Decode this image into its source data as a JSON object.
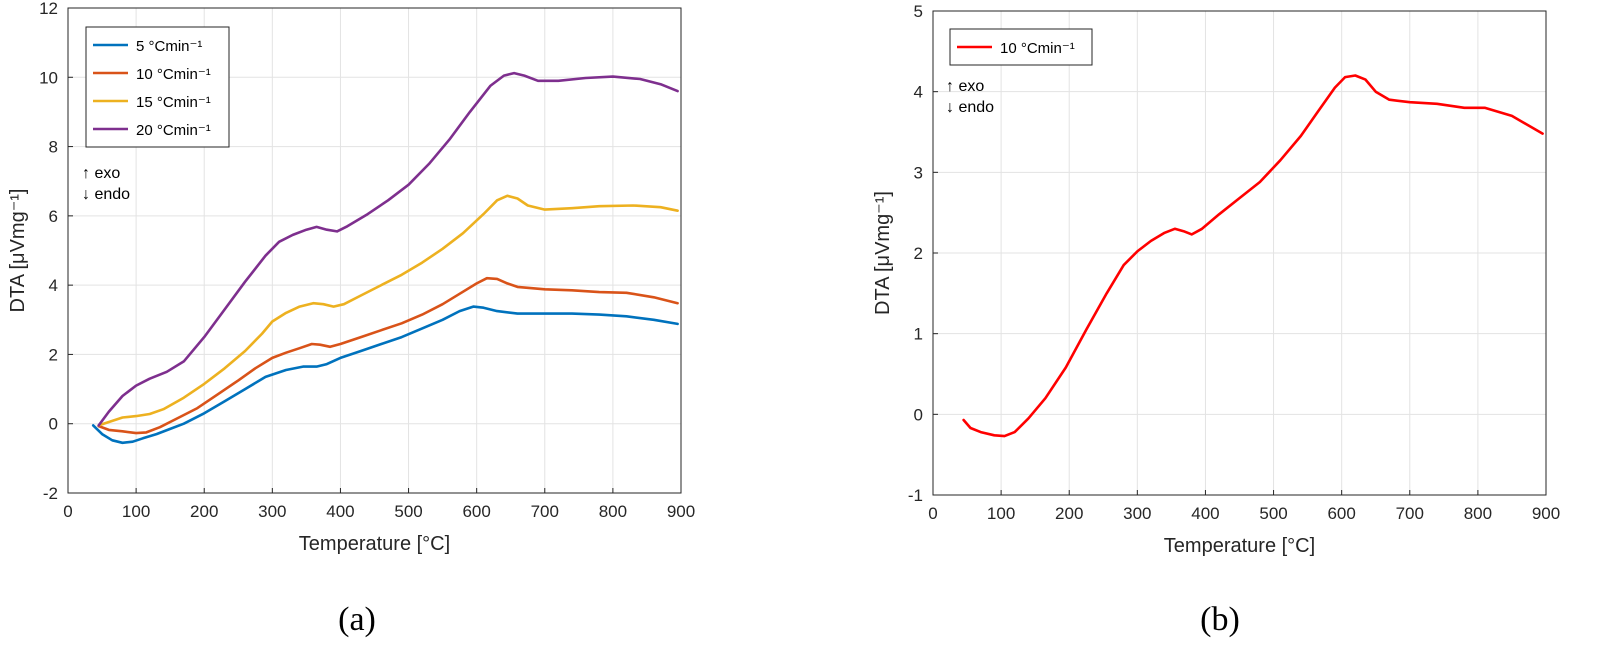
{
  "chart_data": [
    {
      "type": "line",
      "panel_label": "(a)",
      "xlabel": "Temperature [°C]",
      "ylabel": "DTA [μVmg⁻¹]",
      "xlim": [
        0,
        900
      ],
      "ylim": [
        -2,
        12
      ],
      "x_ticks": [
        "0",
        "100",
        "200",
        "300",
        "400",
        "500",
        "600",
        "700",
        "800",
        "900"
      ],
      "y_ticks": [
        "-2",
        "0",
        "2",
        "4",
        "6",
        "8",
        "10",
        "12"
      ],
      "grid": true,
      "legend_position": "top-left",
      "annotations": [
        "↑ exo",
        "↓ endo"
      ],
      "series": [
        {
          "name": "5 °Cmin⁻¹",
          "color": "#0072BD",
          "points": [
            [
              37,
              -0.05
            ],
            [
              50,
              -0.3
            ],
            [
              65,
              -0.48
            ],
            [
              80,
              -0.55
            ],
            [
              95,
              -0.52
            ],
            [
              110,
              -0.42
            ],
            [
              130,
              -0.3
            ],
            [
              150,
              -0.15
            ],
            [
              170,
              0.0
            ],
            [
              200,
              0.3
            ],
            [
              230,
              0.65
            ],
            [
              260,
              1.0
            ],
            [
              290,
              1.35
            ],
            [
              320,
              1.55
            ],
            [
              345,
              1.65
            ],
            [
              365,
              1.65
            ],
            [
              380,
              1.72
            ],
            [
              400,
              1.9
            ],
            [
              430,
              2.1
            ],
            [
              460,
              2.3
            ],
            [
              490,
              2.5
            ],
            [
              520,
              2.75
            ],
            [
              550,
              3.0
            ],
            [
              575,
              3.25
            ],
            [
              595,
              3.38
            ],
            [
              610,
              3.35
            ],
            [
              630,
              3.25
            ],
            [
              660,
              3.18
            ],
            [
              700,
              3.18
            ],
            [
              740,
              3.18
            ],
            [
              780,
              3.15
            ],
            [
              820,
              3.1
            ],
            [
              860,
              3.0
            ],
            [
              895,
              2.88
            ]
          ]
        },
        {
          "name": "10 °Cmin⁻¹",
          "color": "#D95319",
          "points": [
            [
              45,
              -0.07
            ],
            [
              60,
              -0.18
            ],
            [
              80,
              -0.22
            ],
            [
              100,
              -0.27
            ],
            [
              115,
              -0.25
            ],
            [
              135,
              -0.1
            ],
            [
              160,
              0.15
            ],
            [
              190,
              0.45
            ],
            [
              220,
              0.85
            ],
            [
              250,
              1.25
            ],
            [
              275,
              1.6
            ],
            [
              300,
              1.9
            ],
            [
              320,
              2.05
            ],
            [
              340,
              2.18
            ],
            [
              358,
              2.3
            ],
            [
              370,
              2.28
            ],
            [
              385,
              2.22
            ],
            [
              400,
              2.3
            ],
            [
              430,
              2.5
            ],
            [
              460,
              2.7
            ],
            [
              490,
              2.9
            ],
            [
              520,
              3.15
            ],
            [
              550,
              3.45
            ],
            [
              575,
              3.75
            ],
            [
              600,
              4.05
            ],
            [
              615,
              4.2
            ],
            [
              630,
              4.18
            ],
            [
              645,
              4.05
            ],
            [
              660,
              3.95
            ],
            [
              700,
              3.88
            ],
            [
              740,
              3.85
            ],
            [
              780,
              3.8
            ],
            [
              820,
              3.78
            ],
            [
              860,
              3.65
            ],
            [
              895,
              3.48
            ]
          ]
        },
        {
          "name": "15 °Cmin⁻¹",
          "color": "#EDB120",
          "points": [
            [
              45,
              -0.05
            ],
            [
              60,
              0.05
            ],
            [
              80,
              0.18
            ],
            [
              100,
              0.22
            ],
            [
              120,
              0.28
            ],
            [
              140,
              0.42
            ],
            [
              170,
              0.75
            ],
            [
              200,
              1.15
            ],
            [
              230,
              1.6
            ],
            [
              260,
              2.1
            ],
            [
              285,
              2.6
            ],
            [
              300,
              2.95
            ],
            [
              320,
              3.2
            ],
            [
              340,
              3.38
            ],
            [
              360,
              3.48
            ],
            [
              375,
              3.45
            ],
            [
              390,
              3.38
            ],
            [
              405,
              3.45
            ],
            [
              430,
              3.7
            ],
            [
              460,
              4.0
            ],
            [
              490,
              4.3
            ],
            [
              520,
              4.65
            ],
            [
              550,
              5.05
            ],
            [
              580,
              5.5
            ],
            [
              610,
              6.05
            ],
            [
              630,
              6.45
            ],
            [
              645,
              6.58
            ],
            [
              660,
              6.5
            ],
            [
              675,
              6.3
            ],
            [
              700,
              6.18
            ],
            [
              740,
              6.22
            ],
            [
              780,
              6.28
            ],
            [
              830,
              6.3
            ],
            [
              870,
              6.25
            ],
            [
              895,
              6.15
            ]
          ]
        },
        {
          "name": "20 °Cmin⁻¹",
          "color": "#7E2F8E",
          "points": [
            [
              45,
              -0.05
            ],
            [
              60,
              0.35
            ],
            [
              80,
              0.8
            ],
            [
              100,
              1.1
            ],
            [
              120,
              1.3
            ],
            [
              145,
              1.5
            ],
            [
              170,
              1.8
            ],
            [
              200,
              2.5
            ],
            [
              230,
              3.3
            ],
            [
              260,
              4.1
            ],
            [
              290,
              4.85
            ],
            [
              310,
              5.25
            ],
            [
              330,
              5.45
            ],
            [
              350,
              5.6
            ],
            [
              365,
              5.68
            ],
            [
              380,
              5.6
            ],
            [
              395,
              5.55
            ],
            [
              410,
              5.7
            ],
            [
              440,
              6.05
            ],
            [
              470,
              6.45
            ],
            [
              500,
              6.9
            ],
            [
              530,
              7.5
            ],
            [
              560,
              8.2
            ],
            [
              590,
              9.0
            ],
            [
              620,
              9.75
            ],
            [
              640,
              10.05
            ],
            [
              655,
              10.12
            ],
            [
              670,
              10.05
            ],
            [
              690,
              9.9
            ],
            [
              720,
              9.9
            ],
            [
              760,
              9.98
            ],
            [
              800,
              10.02
            ],
            [
              840,
              9.95
            ],
            [
              870,
              9.8
            ],
            [
              895,
              9.6
            ]
          ]
        }
      ]
    },
    {
      "type": "line",
      "panel_label": "(b)",
      "xlabel": "Temperature [°C]",
      "ylabel": "DTA [μVmg⁻¹]",
      "xlim": [
        0,
        900
      ],
      "ylim": [
        -1,
        5
      ],
      "x_ticks": [
        "0",
        "100",
        "200",
        "300",
        "400",
        "500",
        "600",
        "700",
        "800",
        "900"
      ],
      "y_ticks": [
        "-1",
        "0",
        "1",
        "2",
        "3",
        "4",
        "5"
      ],
      "grid": true,
      "legend_position": "top-left",
      "annotations": [
        "↑ exo",
        "↓ endo"
      ],
      "series": [
        {
          "name": "10 °Cmin⁻¹",
          "color": "#FF0000",
          "points": [
            [
              45,
              -0.07
            ],
            [
              55,
              -0.17
            ],
            [
              70,
              -0.22
            ],
            [
              90,
              -0.26
            ],
            [
              105,
              -0.27
            ],
            [
              120,
              -0.22
            ],
            [
              140,
              -0.05
            ],
            [
              165,
              0.2
            ],
            [
              195,
              0.58
            ],
            [
              225,
              1.05
            ],
            [
              255,
              1.5
            ],
            [
              280,
              1.85
            ],
            [
              300,
              2.02
            ],
            [
              320,
              2.15
            ],
            [
              340,
              2.25
            ],
            [
              355,
              2.3
            ],
            [
              368,
              2.27
            ],
            [
              380,
              2.23
            ],
            [
              395,
              2.3
            ],
            [
              420,
              2.48
            ],
            [
              450,
              2.68
            ],
            [
              480,
              2.88
            ],
            [
              510,
              3.15
            ],
            [
              540,
              3.45
            ],
            [
              565,
              3.75
            ],
            [
              590,
              4.05
            ],
            [
              605,
              4.18
            ],
            [
              620,
              4.2
            ],
            [
              635,
              4.15
            ],
            [
              650,
              4.0
            ],
            [
              670,
              3.9
            ],
            [
              700,
              3.87
            ],
            [
              740,
              3.85
            ],
            [
              780,
              3.8
            ],
            [
              810,
              3.8
            ],
            [
              850,
              3.7
            ],
            [
              895,
              3.48
            ]
          ]
        }
      ]
    }
  ]
}
